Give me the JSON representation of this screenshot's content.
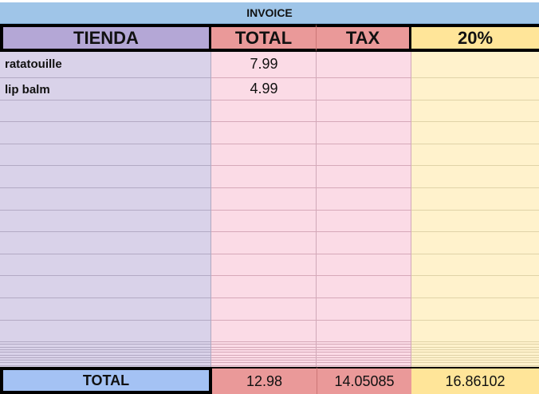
{
  "sheet": {
    "title": "INVOICE",
    "headers": [
      "TIENDA",
      "TOTAL",
      "TAX",
      "20%"
    ],
    "rows": [
      {
        "item": "ratatouille",
        "total": "7.99"
      },
      {
        "item": "lip balm",
        "total": "4.99"
      }
    ],
    "footer": {
      "label": "TOTAL",
      "total": "12.98",
      "tax": "14.05085",
      "pct": "16.86102"
    },
    "colors": {
      "title_bg": "#9fc5e8",
      "tienda_header": "#b4a7d6",
      "total_header": "#ea9999",
      "pct_header": "#ffe599",
      "tienda_body": "#d9d2e9",
      "total_body": "#fbdbe6",
      "pct_body": "#fff2cc",
      "footer_label": "#a4c2f4"
    }
  }
}
